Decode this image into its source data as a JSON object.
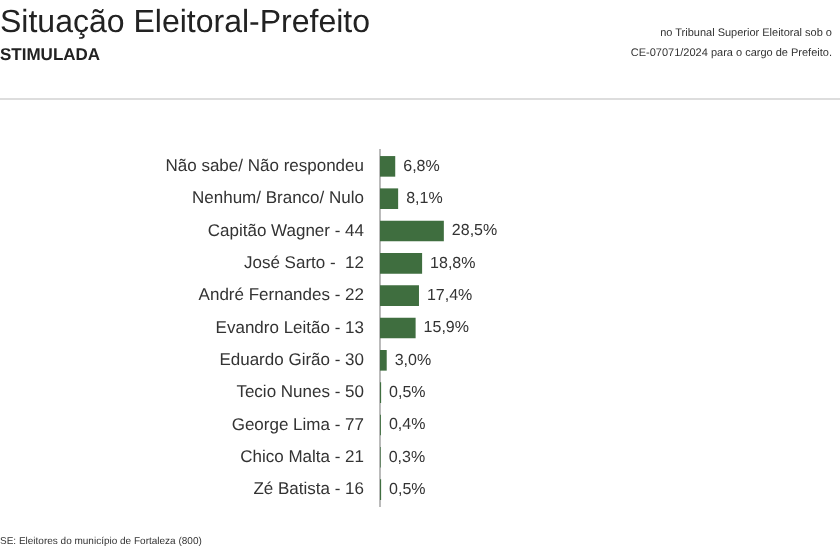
{
  "chart_data": {
    "type": "bar",
    "orientation": "horizontal",
    "title": "Situação Eleitoral-Prefeito",
    "subtitle": "STIMULADA",
    "categories": [
      "Não sabe/ Não respondeu",
      "Nenhum/ Branco/ Nulo",
      "Capitão Wagner - 44",
      "José Sarto -  12",
      "André Fernandes - 22",
      "Evandro Leitão - 13",
      "Eduardo Girão - 30",
      "Tecio Nunes - 50",
      "George Lima - 77",
      "Chico Malta - 21",
      "Zé Batista - 16"
    ],
    "values": [
      6.8,
      8.1,
      28.5,
      18.8,
      17.4,
      15.9,
      3.0,
      0.5,
      0.4,
      0.3,
      0.5
    ],
    "value_labels": [
      "6,8%",
      "8,1%",
      "28,5%",
      "18,8%",
      "17,4%",
      "15,9%",
      "3,0%",
      "0,5%",
      "0,4%",
      "0,3%",
      "0,5%"
    ],
    "color": "#3f6e3f",
    "grid": false,
    "legend": false,
    "annotations": [
      "no Tribunal Superior Eleitoral sob o",
      "CE-07071/2024 para o cargo de Prefeito.",
      "SE: Eleitores do município de Fortaleza (800)"
    ]
  }
}
